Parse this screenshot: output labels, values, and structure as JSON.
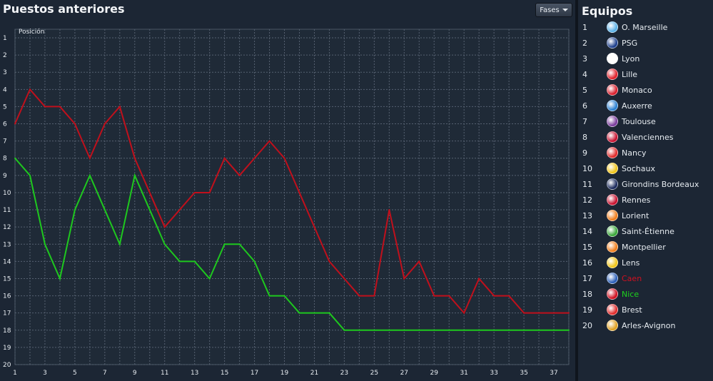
{
  "header": {
    "title": "Puestos anteriores",
    "fases_label": "Fases"
  },
  "teams_panel": {
    "title": "Equipos",
    "teams": [
      {
        "pos": "1",
        "name": "O. Marseille",
        "crest": "#5ab0e6"
      },
      {
        "pos": "2",
        "name": "PSG",
        "crest": "#1d3f8c"
      },
      {
        "pos": "3",
        "name": "Lyon",
        "crest": "#ffffff"
      },
      {
        "pos": "4",
        "name": "Lille",
        "crest": "#e0202a"
      },
      {
        "pos": "5",
        "name": "Monaco",
        "crest": "#d81e2c"
      },
      {
        "pos": "6",
        "name": "Auxerre",
        "crest": "#2a7fd1"
      },
      {
        "pos": "7",
        "name": "Toulouse",
        "crest": "#7a3c9c"
      },
      {
        "pos": "8",
        "name": "Valenciennes",
        "crest": "#c8102e"
      },
      {
        "pos": "9",
        "name": "Nancy",
        "crest": "#e02a2a"
      },
      {
        "pos": "10",
        "name": "Sochaux",
        "crest": "#f0c419"
      },
      {
        "pos": "11",
        "name": "Girondins Bordeaux",
        "crest": "#1b2a5c"
      },
      {
        "pos": "12",
        "name": "Rennes",
        "crest": "#c8102e"
      },
      {
        "pos": "13",
        "name": "Lorient",
        "crest": "#f07d1a"
      },
      {
        "pos": "14",
        "name": "Saint-Étienne",
        "crest": "#3aa63a"
      },
      {
        "pos": "15",
        "name": "Montpellier",
        "crest": "#f07d1a"
      },
      {
        "pos": "16",
        "name": "Lens",
        "crest": "#f0c419"
      },
      {
        "pos": "17",
        "name": "Caen",
        "crest": "#2b5fb8",
        "highlight": "#d01020"
      },
      {
        "pos": "18",
        "name": "Nice",
        "crest": "#d01020",
        "highlight": "#1ed21e"
      },
      {
        "pos": "19",
        "name": "Brest",
        "crest": "#e02a2a"
      },
      {
        "pos": "20",
        "name": "Arles-Avignon",
        "crest": "#e0a020"
      }
    ]
  },
  "chart_data": {
    "type": "line",
    "ylabel": "Posición",
    "x": [
      1,
      2,
      3,
      4,
      5,
      6,
      7,
      8,
      9,
      10,
      11,
      12,
      13,
      14,
      15,
      16,
      17,
      18,
      19,
      20,
      21,
      22,
      23,
      24,
      25,
      26,
      27,
      28,
      29,
      30,
      31,
      32,
      33,
      34,
      35,
      36,
      37,
      38
    ],
    "x_tick_labels": [
      "1",
      "3",
      "5",
      "7",
      "9",
      "11",
      "13",
      "15",
      "17",
      "19",
      "21",
      "23",
      "25",
      "27",
      "29",
      "31",
      "33",
      "35",
      "37"
    ],
    "y_tick_labels": [
      "1",
      "2",
      "3",
      "4",
      "5",
      "6",
      "7",
      "8",
      "9",
      "10",
      "11",
      "12",
      "13",
      "14",
      "15",
      "16",
      "17",
      "18",
      "19",
      "20"
    ],
    "xlim": [
      1,
      38
    ],
    "ylim": [
      1,
      20
    ],
    "y_inverted": true,
    "grid": true,
    "series": [
      {
        "color": "#c0101c",
        "values": [
          6,
          4,
          5,
          5,
          6,
          8,
          6,
          5,
          8,
          10,
          12,
          11,
          10,
          10,
          8,
          9,
          8,
          7,
          8,
          10,
          12,
          14,
          15,
          16,
          16,
          11,
          15,
          14,
          16,
          16,
          17,
          15,
          16,
          16,
          17,
          17,
          17,
          17
        ]
      },
      {
        "color": "#1ec81e",
        "values": [
          8,
          9,
          13,
          15,
          11,
          9,
          11,
          13,
          9,
          11,
          13,
          14,
          14,
          15,
          13,
          13,
          14,
          16,
          16,
          17,
          17,
          17,
          18,
          18,
          18,
          18,
          18,
          18,
          18,
          18,
          18,
          18,
          18,
          18,
          18,
          18,
          18,
          18
        ]
      }
    ]
  }
}
